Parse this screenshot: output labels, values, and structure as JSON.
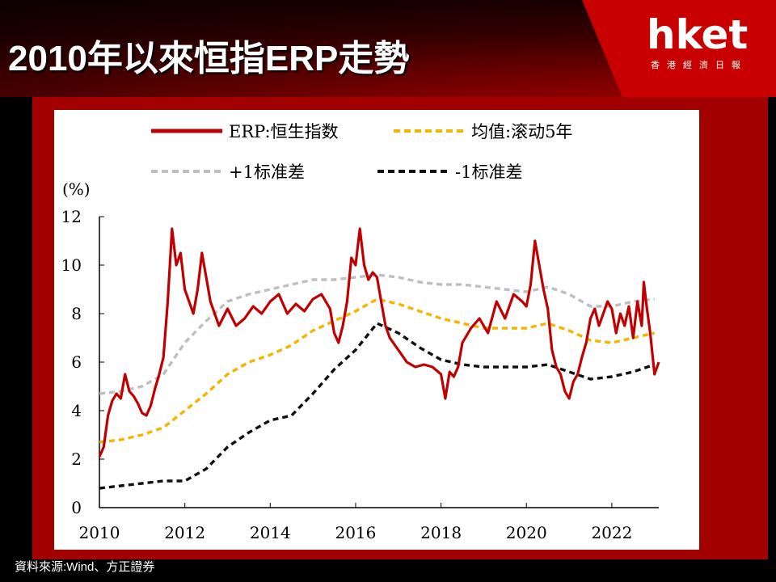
{
  "header": {
    "title": "2010年以來恒指ERP走勢",
    "logo": "hket",
    "logo_sub": "香港經濟日報"
  },
  "footer": {
    "source": "資料來源:Wind、方正證券"
  },
  "colors": {
    "erp": "#c00000",
    "mean": "#f4b400",
    "plus1": "#bfbfbf",
    "minus1": "#111111"
  },
  "chart_data": {
    "type": "line",
    "ylabel": "(%)",
    "ylim": [
      0,
      12
    ],
    "xlim": [
      2010,
      2023.1
    ],
    "yticks": [
      0,
      2,
      4,
      6,
      8,
      10,
      12
    ],
    "xticks": [
      2010,
      2012,
      2014,
      2016,
      2018,
      2020,
      2022
    ],
    "xtick_labels": [
      "2010",
      "2012",
      "2014",
      "2016",
      "2018",
      "2020",
      "2022"
    ],
    "legend_placement": "top",
    "series": [
      {
        "name": "ERP:恒生指数",
        "color": "#c00000",
        "style": "solid",
        "points": [
          [
            2010.0,
            2.1
          ],
          [
            2010.1,
            2.5
          ],
          [
            2010.2,
            3.8
          ],
          [
            2010.3,
            4.4
          ],
          [
            2010.4,
            4.7
          ],
          [
            2010.5,
            4.5
          ],
          [
            2010.6,
            5.5
          ],
          [
            2010.7,
            4.8
          ],
          [
            2010.8,
            4.6
          ],
          [
            2010.9,
            4.3
          ],
          [
            2011.0,
            3.9
          ],
          [
            2011.1,
            3.8
          ],
          [
            2011.2,
            4.2
          ],
          [
            2011.3,
            4.9
          ],
          [
            2011.4,
            5.5
          ],
          [
            2011.5,
            6.2
          ],
          [
            2011.6,
            8.5
          ],
          [
            2011.7,
            11.5
          ],
          [
            2011.8,
            10.0
          ],
          [
            2011.9,
            10.5
          ],
          [
            2012.0,
            9.0
          ],
          [
            2012.1,
            8.5
          ],
          [
            2012.2,
            8.0
          ],
          [
            2012.3,
            9.0
          ],
          [
            2012.4,
            10.5
          ],
          [
            2012.5,
            9.5
          ],
          [
            2012.6,
            8.5
          ],
          [
            2012.8,
            7.5
          ],
          [
            2013.0,
            8.2
          ],
          [
            2013.2,
            7.5
          ],
          [
            2013.4,
            7.8
          ],
          [
            2013.6,
            8.3
          ],
          [
            2013.8,
            8.0
          ],
          [
            2014.0,
            8.5
          ],
          [
            2014.2,
            8.8
          ],
          [
            2014.4,
            8.0
          ],
          [
            2014.6,
            8.4
          ],
          [
            2014.8,
            8.1
          ],
          [
            2015.0,
            8.6
          ],
          [
            2015.2,
            8.8
          ],
          [
            2015.4,
            8.2
          ],
          [
            2015.5,
            7.2
          ],
          [
            2015.6,
            6.8
          ],
          [
            2015.7,
            7.5
          ],
          [
            2015.8,
            8.5
          ],
          [
            2015.9,
            10.3
          ],
          [
            2016.0,
            10.0
          ],
          [
            2016.1,
            11.5
          ],
          [
            2016.2,
            10.0
          ],
          [
            2016.3,
            9.4
          ],
          [
            2016.4,
            9.7
          ],
          [
            2016.5,
            9.5
          ],
          [
            2016.6,
            8.5
          ],
          [
            2016.7,
            7.5
          ],
          [
            2016.8,
            7.0
          ],
          [
            2017.0,
            6.5
          ],
          [
            2017.2,
            6.0
          ],
          [
            2017.4,
            5.8
          ],
          [
            2017.6,
            5.9
          ],
          [
            2017.8,
            5.8
          ],
          [
            2018.0,
            5.5
          ],
          [
            2018.1,
            4.5
          ],
          [
            2018.2,
            5.6
          ],
          [
            2018.3,
            5.4
          ],
          [
            2018.4,
            5.8
          ],
          [
            2018.5,
            6.8
          ],
          [
            2018.7,
            7.4
          ],
          [
            2018.9,
            7.8
          ],
          [
            2019.1,
            7.2
          ],
          [
            2019.3,
            8.5
          ],
          [
            2019.5,
            7.8
          ],
          [
            2019.7,
            8.8
          ],
          [
            2019.9,
            8.5
          ],
          [
            2020.0,
            8.3
          ],
          [
            2020.1,
            9.2
          ],
          [
            2020.2,
            11.0
          ],
          [
            2020.3,
            10.0
          ],
          [
            2020.4,
            9.0
          ],
          [
            2020.5,
            8.2
          ],
          [
            2020.6,
            6.5
          ],
          [
            2020.7,
            5.8
          ],
          [
            2020.8,
            5.5
          ],
          [
            2020.9,
            4.8
          ],
          [
            2021.0,
            4.5
          ],
          [
            2021.1,
            5.2
          ],
          [
            2021.2,
            5.5
          ],
          [
            2021.3,
            6.2
          ],
          [
            2021.4,
            6.8
          ],
          [
            2021.5,
            7.8
          ],
          [
            2021.6,
            8.2
          ],
          [
            2021.7,
            7.5
          ],
          [
            2021.8,
            8.0
          ],
          [
            2021.9,
            8.5
          ],
          [
            2022.0,
            8.2
          ],
          [
            2022.1,
            7.2
          ],
          [
            2022.2,
            8.0
          ],
          [
            2022.3,
            7.5
          ],
          [
            2022.4,
            8.3
          ],
          [
            2022.5,
            7.0
          ],
          [
            2022.6,
            8.5
          ],
          [
            2022.7,
            7.5
          ],
          [
            2022.75,
            9.3
          ],
          [
            2022.8,
            8.5
          ],
          [
            2022.9,
            7.2
          ],
          [
            2023.0,
            5.5
          ],
          [
            2023.1,
            6.0
          ]
        ]
      },
      {
        "name": "均值:滚动5年",
        "color": "#f4b400",
        "style": "dashed",
        "points": [
          [
            2010.0,
            2.7
          ],
          [
            2010.5,
            2.8
          ],
          [
            2011.0,
            3.0
          ],
          [
            2011.5,
            3.3
          ],
          [
            2012.0,
            4.0
          ],
          [
            2012.5,
            4.7
          ],
          [
            2013.0,
            5.5
          ],
          [
            2013.5,
            6.0
          ],
          [
            2014.0,
            6.3
          ],
          [
            2014.5,
            6.7
          ],
          [
            2015.0,
            7.3
          ],
          [
            2015.5,
            7.7
          ],
          [
            2016.0,
            8.1
          ],
          [
            2016.5,
            8.6
          ],
          [
            2017.0,
            8.4
          ],
          [
            2017.5,
            8.1
          ],
          [
            2018.0,
            7.8
          ],
          [
            2018.5,
            7.6
          ],
          [
            2019.0,
            7.4
          ],
          [
            2019.5,
            7.4
          ],
          [
            2020.0,
            7.4
          ],
          [
            2020.5,
            7.6
          ],
          [
            2021.0,
            7.3
          ],
          [
            2021.5,
            6.9
          ],
          [
            2022.0,
            6.8
          ],
          [
            2022.5,
            7.0
          ],
          [
            2023.0,
            7.2
          ]
        ]
      },
      {
        "name": "+1标准差",
        "color": "#bfbfbf",
        "style": "dashed",
        "points": [
          [
            2010.0,
            4.7
          ],
          [
            2010.5,
            4.8
          ],
          [
            2011.0,
            5.0
          ],
          [
            2011.5,
            5.5
          ],
          [
            2012.0,
            6.8
          ],
          [
            2012.5,
            7.7
          ],
          [
            2013.0,
            8.5
          ],
          [
            2013.5,
            8.8
          ],
          [
            2014.0,
            9.0
          ],
          [
            2014.5,
            9.2
          ],
          [
            2015.0,
            9.4
          ],
          [
            2015.5,
            9.4
          ],
          [
            2016.0,
            9.5
          ],
          [
            2016.5,
            9.6
          ],
          [
            2017.0,
            9.5
          ],
          [
            2017.5,
            9.3
          ],
          [
            2018.0,
            9.2
          ],
          [
            2018.5,
            9.2
          ],
          [
            2019.0,
            9.1
          ],
          [
            2019.5,
            9.0
          ],
          [
            2020.0,
            8.9
          ],
          [
            2020.5,
            9.1
          ],
          [
            2021.0,
            8.8
          ],
          [
            2021.5,
            8.3
          ],
          [
            2022.0,
            8.3
          ],
          [
            2022.5,
            8.5
          ],
          [
            2023.0,
            8.6
          ]
        ]
      },
      {
        "name": "-1标准差",
        "color": "#111111",
        "style": "dashed",
        "points": [
          [
            2010.0,
            0.8
          ],
          [
            2010.5,
            0.9
          ],
          [
            2011.0,
            1.0
          ],
          [
            2011.5,
            1.1
          ],
          [
            2012.0,
            1.1
          ],
          [
            2012.5,
            1.6
          ],
          [
            2013.0,
            2.5
          ],
          [
            2013.5,
            3.1
          ],
          [
            2014.0,
            3.6
          ],
          [
            2014.5,
            3.8
          ],
          [
            2015.0,
            4.7
          ],
          [
            2015.5,
            5.7
          ],
          [
            2016.0,
            6.5
          ],
          [
            2016.5,
            7.6
          ],
          [
            2017.0,
            7.2
          ],
          [
            2017.5,
            6.6
          ],
          [
            2018.0,
            6.1
          ],
          [
            2018.5,
            5.9
          ],
          [
            2019.0,
            5.8
          ],
          [
            2019.5,
            5.8
          ],
          [
            2020.0,
            5.8
          ],
          [
            2020.5,
            5.9
          ],
          [
            2021.0,
            5.6
          ],
          [
            2021.5,
            5.3
          ],
          [
            2022.0,
            5.4
          ],
          [
            2022.5,
            5.6
          ],
          [
            2023.0,
            5.9
          ]
        ]
      }
    ]
  }
}
